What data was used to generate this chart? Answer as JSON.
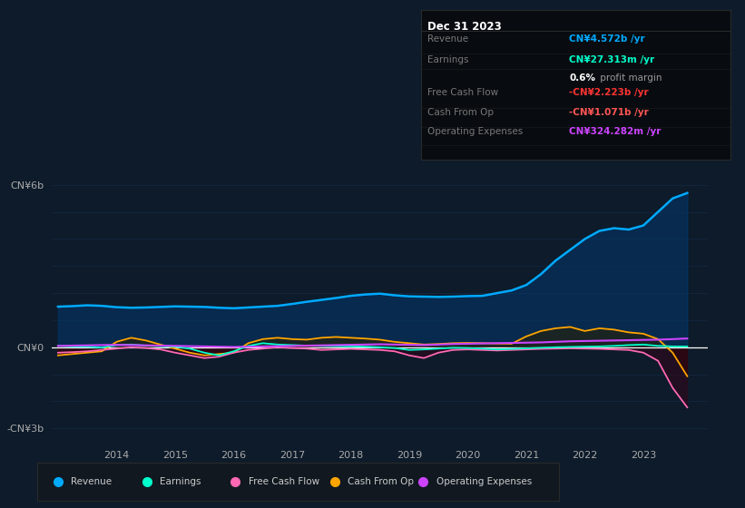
{
  "bg_color": "#0d1b2a",
  "plot_bg_color": "#0d1b2a",
  "grid_color": "#1e3a5f",
  "legend": [
    {
      "label": "Revenue",
      "color": "#00aaff"
    },
    {
      "label": "Earnings",
      "color": "#00ffcc"
    },
    {
      "label": "Free Cash Flow",
      "color": "#ff69b4"
    },
    {
      "label": "Cash From Op",
      "color": "#ffa500"
    },
    {
      "label": "Operating Expenses",
      "color": "#cc44ff"
    }
  ],
  "series": {
    "years": [
      2013.0,
      2013.25,
      2013.5,
      2013.75,
      2014.0,
      2014.25,
      2014.5,
      2014.75,
      2015.0,
      2015.25,
      2015.5,
      2015.75,
      2016.0,
      2016.25,
      2016.5,
      2016.75,
      2017.0,
      2017.25,
      2017.5,
      2017.75,
      2018.0,
      2018.25,
      2018.5,
      2018.75,
      2019.0,
      2019.25,
      2019.5,
      2019.75,
      2020.0,
      2020.25,
      2020.5,
      2020.75,
      2021.0,
      2021.25,
      2021.5,
      2021.75,
      2022.0,
      2022.25,
      2022.5,
      2022.75,
      2023.0,
      2023.25,
      2023.5,
      2023.75
    ],
    "revenue": [
      1500000000,
      1520000000,
      1550000000,
      1530000000,
      1480000000,
      1460000000,
      1470000000,
      1490000000,
      1510000000,
      1500000000,
      1490000000,
      1460000000,
      1440000000,
      1470000000,
      1500000000,
      1530000000,
      1600000000,
      1680000000,
      1750000000,
      1820000000,
      1900000000,
      1950000000,
      1980000000,
      1920000000,
      1880000000,
      1870000000,
      1860000000,
      1870000000,
      1890000000,
      1900000000,
      2000000000,
      2100000000,
      2300000000,
      2700000000,
      3200000000,
      3600000000,
      4000000000,
      4300000000,
      4400000000,
      4350000000,
      4500000000,
      5000000000,
      5500000000,
      5700000000
    ],
    "earnings": [
      50000000,
      30000000,
      20000000,
      -10000000,
      80000000,
      100000000,
      60000000,
      40000000,
      20000000,
      -50000000,
      -200000000,
      -300000000,
      -150000000,
      50000000,
      150000000,
      100000000,
      80000000,
      60000000,
      50000000,
      40000000,
      30000000,
      20000000,
      0,
      -30000000,
      -100000000,
      -80000000,
      -50000000,
      -20000000,
      -30000000,
      -50000000,
      -80000000,
      -60000000,
      -40000000,
      -20000000,
      0,
      10000000,
      20000000,
      30000000,
      50000000,
      80000000,
      100000000,
      50000000,
      30000000,
      27313000
    ],
    "free_cash_flow": [
      -200000000,
      -180000000,
      -150000000,
      -100000000,
      -50000000,
      0,
      -30000000,
      -80000000,
      -200000000,
      -300000000,
      -400000000,
      -350000000,
      -200000000,
      -100000000,
      -50000000,
      0,
      -30000000,
      -50000000,
      -100000000,
      -80000000,
      -60000000,
      -80000000,
      -100000000,
      -150000000,
      -300000000,
      -400000000,
      -200000000,
      -100000000,
      -80000000,
      -100000000,
      -120000000,
      -100000000,
      -80000000,
      -60000000,
      -50000000,
      -40000000,
      -50000000,
      -60000000,
      -80000000,
      -100000000,
      -200000000,
      -500000000,
      -1500000000,
      -2223000000
    ],
    "cash_from_op": [
      -300000000,
      -250000000,
      -200000000,
      -150000000,
      200000000,
      350000000,
      250000000,
      100000000,
      -50000000,
      -200000000,
      -300000000,
      -250000000,
      -200000000,
      150000000,
      300000000,
      350000000,
      300000000,
      280000000,
      350000000,
      380000000,
      350000000,
      320000000,
      280000000,
      200000000,
      150000000,
      100000000,
      120000000,
      150000000,
      160000000,
      150000000,
      140000000,
      130000000,
      400000000,
      600000000,
      700000000,
      750000000,
      600000000,
      700000000,
      650000000,
      550000000,
      500000000,
      300000000,
      -200000000,
      -1071000000
    ],
    "operating_expenses": [
      50000000,
      60000000,
      70000000,
      80000000,
      90000000,
      80000000,
      70000000,
      60000000,
      50000000,
      40000000,
      30000000,
      20000000,
      10000000,
      20000000,
      30000000,
      40000000,
      50000000,
      60000000,
      70000000,
      80000000,
      90000000,
      100000000,
      110000000,
      100000000,
      90000000,
      80000000,
      100000000,
      120000000,
      130000000,
      140000000,
      150000000,
      160000000,
      170000000,
      180000000,
      200000000,
      220000000,
      230000000,
      240000000,
      250000000,
      260000000,
      270000000,
      280000000,
      300000000,
      324282000
    ]
  }
}
